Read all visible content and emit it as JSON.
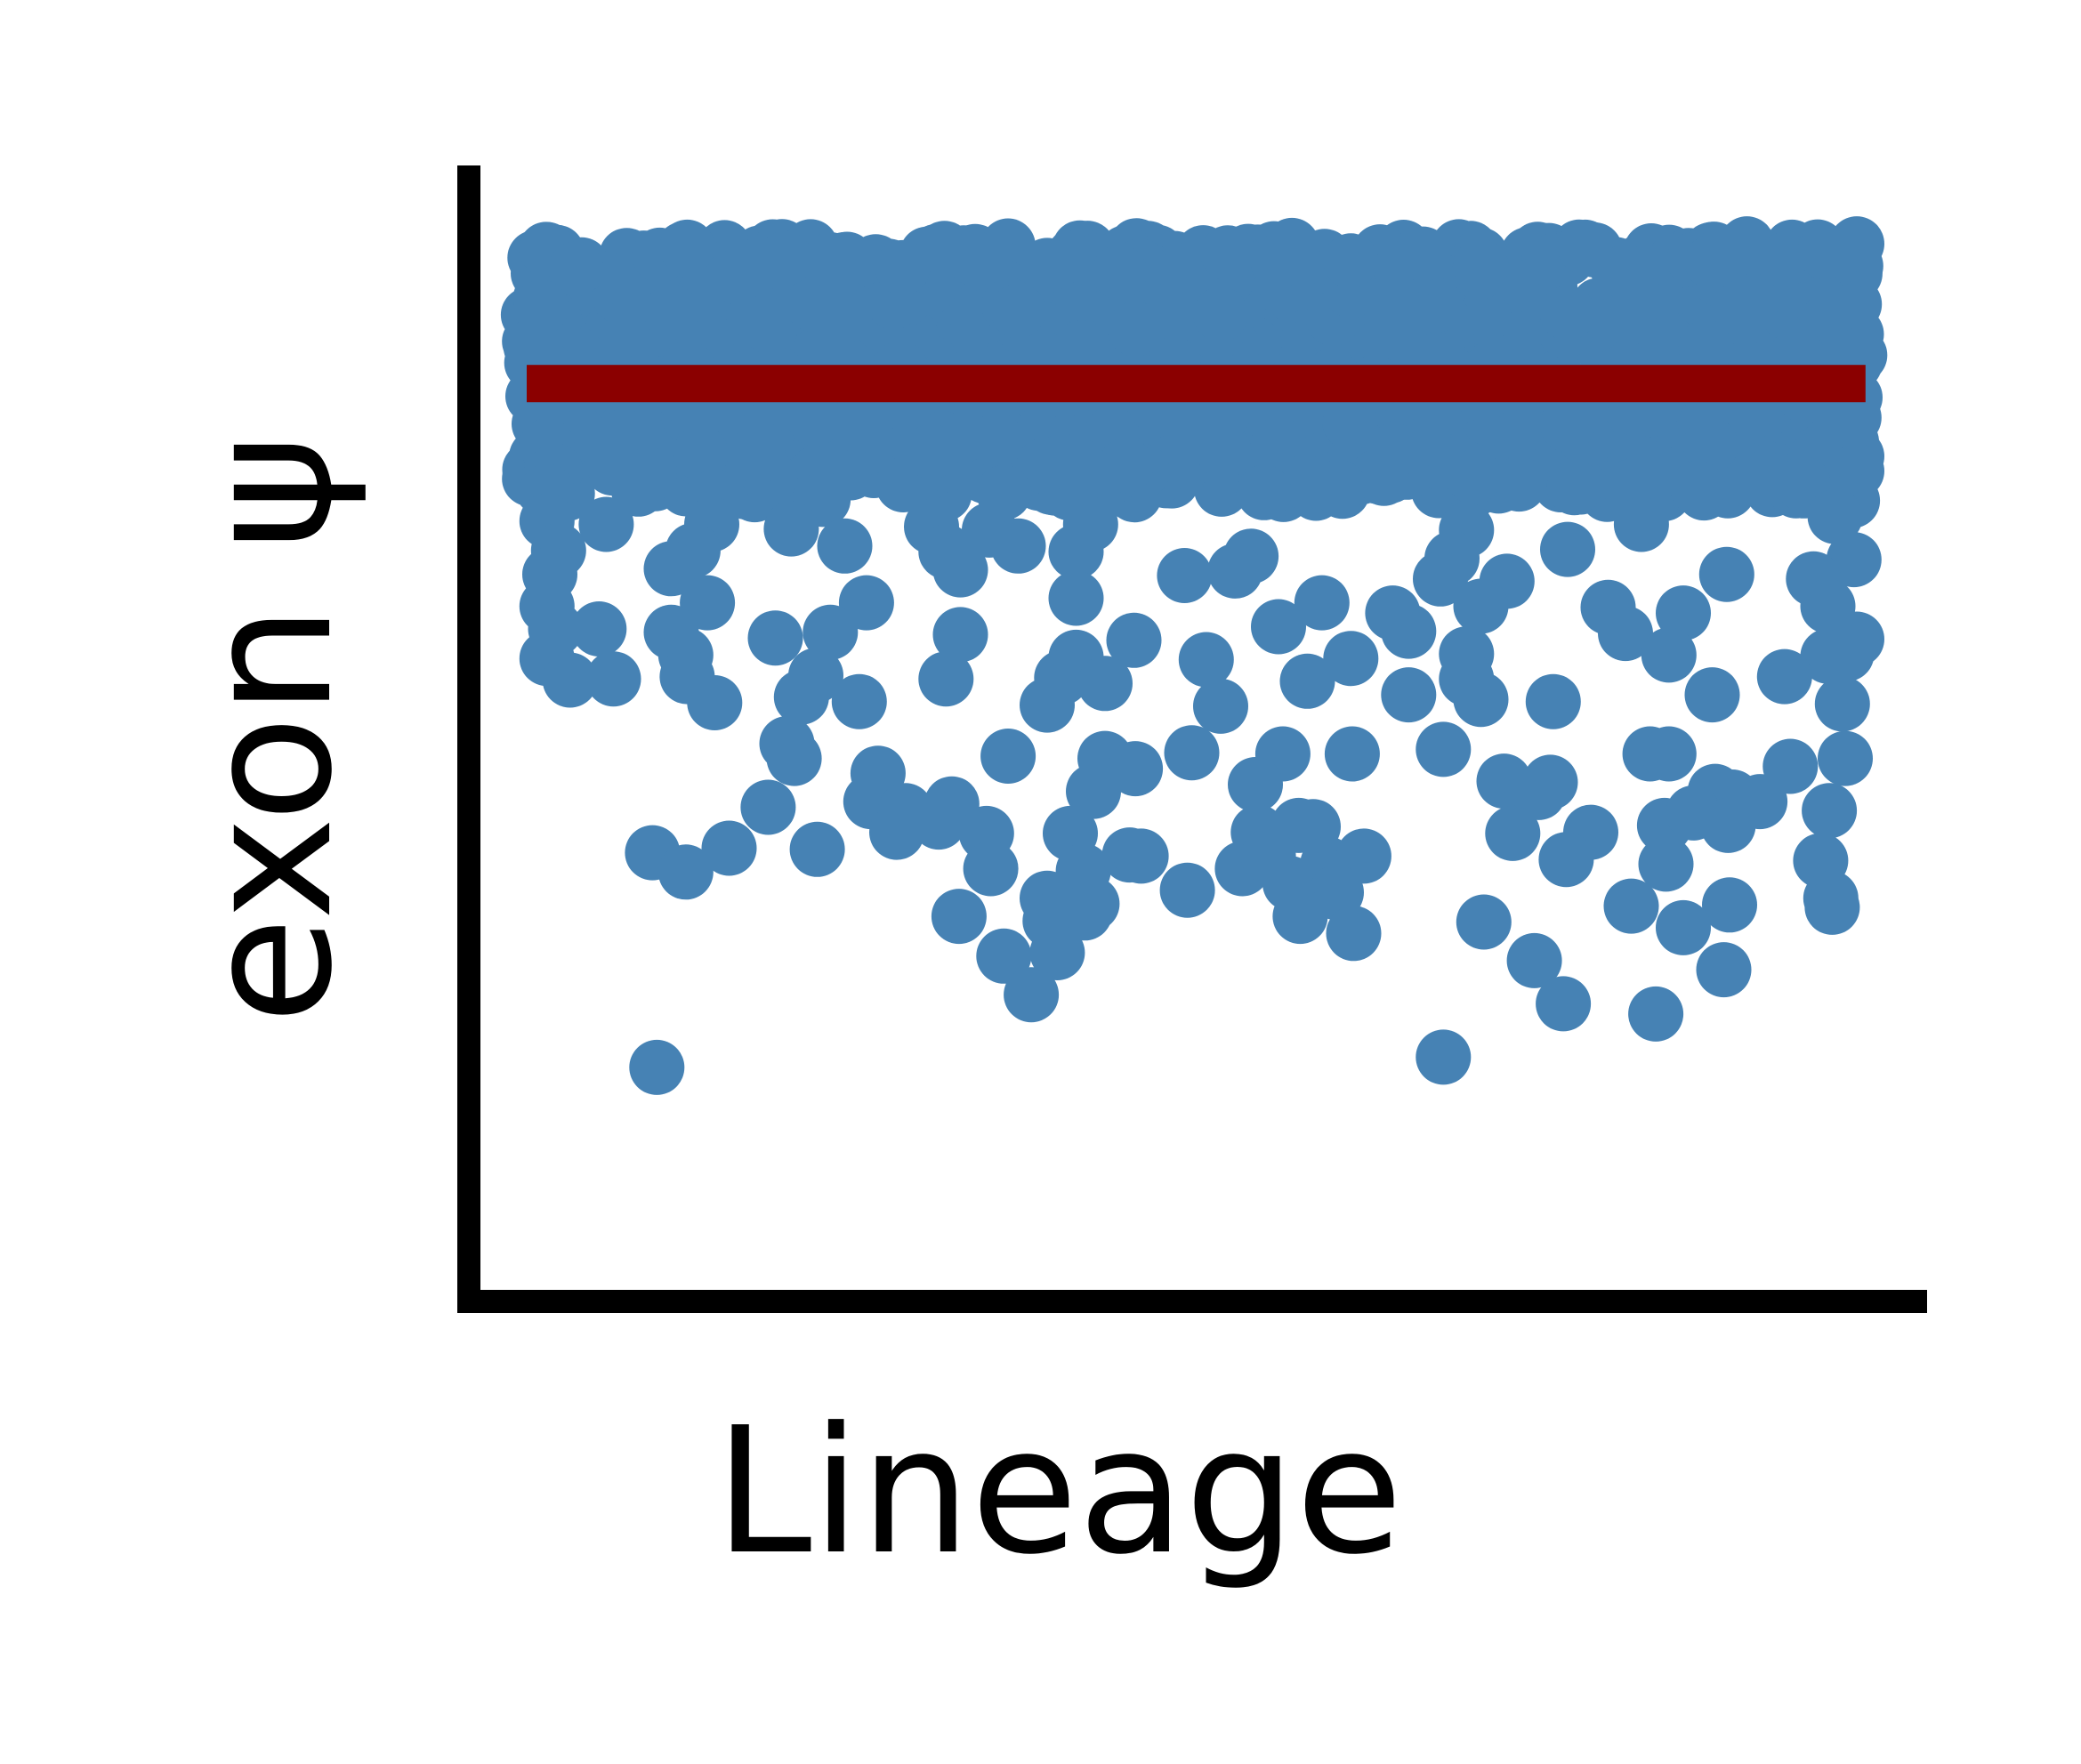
{
  "chart_data": {
    "type": "scatter",
    "title": "",
    "xlabel": "Lineage",
    "ylabel": "exon ψ",
    "xlim": [
      0,
      1
    ],
    "ylim": [
      0,
      1
    ],
    "grid": false,
    "legend": "none",
    "ticks": "none",
    "colors": {
      "points": "#4682b4",
      "reference_line": "#8b0000",
      "axes": "#000000"
    },
    "reference_line": {
      "y": 0.808,
      "x_start": 0.04,
      "x_end": 0.966
    },
    "series": [
      {
        "points_count": 1400,
        "dense_band": {
          "x_range": [
            0.04,
            0.96
          ],
          "y_range": [
            0.71,
            0.93
          ]
        },
        "values": [
          [
            0.048,
            0.905
          ],
          [
            0.054,
            0.926
          ],
          [
            0.074,
            0.909
          ],
          [
            0.108,
            0.9
          ],
          [
            0.132,
            0.921
          ],
          [
            0.151,
            0.928
          ],
          [
            0.2,
            0.912
          ],
          [
            0.25,
            0.917
          ],
          [
            0.3,
            0.91
          ],
          [
            0.329,
            0.927
          ],
          [
            0.35,
            0.918
          ],
          [
            0.4,
            0.912
          ],
          [
            0.434,
            0.916
          ],
          [
            0.45,
            0.906
          ],
          [
            0.5,
            0.909
          ],
          [
            0.525,
            0.923
          ],
          [
            0.56,
            0.916
          ],
          [
            0.61,
            0.916
          ],
          [
            0.65,
            0.911
          ],
          [
            0.66,
            0.922
          ],
          [
            0.7,
            0.911
          ],
          [
            0.75,
            0.916
          ],
          [
            0.772,
            0.928
          ],
          [
            0.8,
            0.906
          ],
          [
            0.86,
            0.915
          ],
          [
            0.884,
            0.931
          ],
          [
            0.91,
            0.917
          ],
          [
            0.938,
            0.924
          ],
          [
            0.96,
            0.931
          ],
          [
            0.05,
            0.875
          ],
          [
            0.14,
            0.871
          ],
          [
            0.26,
            0.868
          ],
          [
            0.38,
            0.872
          ],
          [
            0.52,
            0.869
          ],
          [
            0.64,
            0.873
          ],
          [
            0.76,
            0.87
          ],
          [
            0.88,
            0.874
          ],
          [
            0.955,
            0.871
          ],
          [
            0.043,
            0.84
          ],
          [
            0.962,
            0.833
          ],
          [
            0.052,
            0.775
          ],
          [
            0.27,
            0.771
          ],
          [
            0.5,
            0.776
          ],
          [
            0.76,
            0.772
          ],
          [
            0.958,
            0.778
          ],
          [
            0.054,
            0.753
          ],
          [
            0.2,
            0.744
          ],
          [
            0.32,
            0.748
          ],
          [
            0.64,
            0.749
          ],
          [
            0.96,
            0.744
          ],
          [
            0.06,
            0.731
          ],
          [
            0.96,
            0.731
          ],
          [
            0.054,
            0.713
          ],
          [
            0.17,
            0.708
          ],
          [
            0.245,
            0.706
          ],
          [
            0.37,
            0.712
          ],
          [
            0.55,
            0.712
          ],
          [
            0.85,
            0.716
          ],
          [
            0.957,
            0.705
          ],
          [
            0.054,
            0.687
          ],
          [
            0.095,
            0.684
          ],
          [
            0.168,
            0.684
          ],
          [
            0.223,
            0.68
          ],
          [
            0.32,
            0.682
          ],
          [
            0.36,
            0.679
          ],
          [
            0.43,
            0.684
          ],
          [
            0.69,
            0.679
          ],
          [
            0.811,
            0.684
          ],
          [
            0.945,
            0.691
          ],
          [
            0.062,
            0.661
          ],
          [
            0.155,
            0.661
          ],
          [
            0.26,
            0.665
          ],
          [
            0.33,
            0.66
          ],
          [
            0.38,
            0.665
          ],
          [
            0.42,
            0.66
          ],
          [
            0.541,
            0.656
          ],
          [
            0.68,
            0.654
          ],
          [
            0.76,
            0.662
          ],
          [
            0.958,
            0.653
          ],
          [
            0.056,
            0.64
          ],
          [
            0.14,
            0.645
          ],
          [
            0.34,
            0.644
          ],
          [
            0.495,
            0.639
          ],
          [
            0.53,
            0.643
          ],
          [
            0.672,
            0.636
          ],
          [
            0.718,
            0.634
          ],
          [
            0.87,
            0.64
          ],
          [
            0.93,
            0.636
          ],
          [
            0.054,
            0.612
          ],
          [
            0.165,
            0.615
          ],
          [
            0.275,
            0.615
          ],
          [
            0.42,
            0.619
          ],
          [
            0.59,
            0.615
          ],
          [
            0.639,
            0.606
          ],
          [
            0.7,
            0.612
          ],
          [
            0.788,
            0.611
          ],
          [
            0.84,
            0.606
          ],
          [
            0.94,
            0.612
          ],
          [
            0.06,
            0.592
          ],
          [
            0.09,
            0.592
          ],
          [
            0.14,
            0.589
          ],
          [
            0.25,
            0.589
          ],
          [
            0.34,
            0.587
          ],
          [
            0.46,
            0.582
          ],
          [
            0.56,
            0.594
          ],
          [
            0.65,
            0.59
          ],
          [
            0.8,
            0.588
          ],
          [
            0.96,
            0.583
          ],
          [
            0.054,
            0.566
          ],
          [
            0.15,
            0.569
          ],
          [
            0.212,
            0.584
          ],
          [
            0.42,
            0.567
          ],
          [
            0.51,
            0.565
          ],
          [
            0.61,
            0.566
          ],
          [
            0.69,
            0.57
          ],
          [
            0.83,
            0.569
          ],
          [
            0.94,
            0.568
          ],
          [
            0.953,
            0.57
          ],
          [
            0.07,
            0.547
          ],
          [
            0.1,
            0.548
          ],
          [
            0.151,
            0.55
          ],
          [
            0.24,
            0.551
          ],
          [
            0.33,
            0.548
          ],
          [
            0.41,
            0.549
          ],
          [
            0.44,
            0.544
          ],
          [
            0.58,
            0.546
          ],
          [
            0.69,
            0.548
          ],
          [
            0.91,
            0.55
          ],
          [
            0.17,
            0.527
          ],
          [
            0.23,
            0.532
          ],
          [
            0.27,
            0.528
          ],
          [
            0.4,
            0.525
          ],
          [
            0.52,
            0.524
          ],
          [
            0.65,
            0.534
          ],
          [
            0.7,
            0.53
          ],
          [
            0.75,
            0.528
          ],
          [
            0.86,
            0.534
          ],
          [
            0.95,
            0.526
          ],
          [
            0.22,
            0.491
          ],
          [
            0.225,
            0.478
          ],
          [
            0.283,
            0.465
          ],
          [
            0.373,
            0.48
          ],
          [
            0.44,
            0.478
          ],
          [
            0.461,
            0.469
          ],
          [
            0.5,
            0.483
          ],
          [
            0.563,
            0.482
          ],
          [
            0.611,
            0.482
          ],
          [
            0.674,
            0.486
          ],
          [
            0.748,
            0.457
          ],
          [
            0.817,
            0.482
          ],
          [
            0.83,
            0.482
          ],
          [
            0.914,
            0.471
          ],
          [
            0.952,
            0.478
          ],
          [
            0.278,
            0.44
          ],
          [
            0.302,
            0.432
          ],
          [
            0.334,
            0.438
          ],
          [
            0.432,
            0.449
          ],
          [
            0.544,
            0.455
          ],
          [
            0.716,
            0.458
          ],
          [
            0.74,
            0.448
          ],
          [
            0.862,
            0.449
          ],
          [
            0.874,
            0.444
          ],
          [
            0.893,
            0.44
          ],
          [
            0.941,
            0.432
          ],
          [
            0.207,
            0.435
          ],
          [
            0.296,
            0.413
          ],
          [
            0.325,
            0.422
          ],
          [
            0.358,
            0.412
          ],
          [
            0.416,
            0.412
          ],
          [
            0.546,
            0.413
          ],
          [
            0.574,
            0.419
          ],
          [
            0.584,
            0.418
          ],
          [
            0.722,
            0.412
          ],
          [
            0.776,
            0.413
          ],
          [
            0.827,
            0.419
          ],
          [
            0.847,
            0.43
          ],
          [
            0.871,
            0.419
          ],
          [
            0.127,
            0.395
          ],
          [
            0.15,
            0.378
          ],
          [
            0.18,
            0.399
          ],
          [
            0.241,
            0.398
          ],
          [
            0.361,
            0.381
          ],
          [
            0.425,
            0.379
          ],
          [
            0.457,
            0.393
          ],
          [
            0.465,
            0.392
          ],
          [
            0.535,
            0.381
          ],
          [
            0.553,
            0.392
          ],
          [
            0.594,
            0.385
          ],
          [
            0.619,
            0.392
          ],
          [
            0.759,
            0.389
          ],
          [
            0.828,
            0.385
          ],
          [
            0.935,
            0.388
          ],
          [
            0.4,
            0.355
          ],
          [
            0.41,
            0.352
          ],
          [
            0.431,
            0.35
          ],
          [
            0.497,
            0.362
          ],
          [
            0.568,
            0.368
          ],
          [
            0.6,
            0.36
          ],
          [
            0.804,
            0.348
          ],
          [
            0.872,
            0.349
          ],
          [
            0.942,
            0.355
          ],
          [
            0.339,
            0.339
          ],
          [
            0.402,
            0.335
          ],
          [
            0.426,
            0.342
          ],
          [
            0.575,
            0.339
          ],
          [
            0.612,
            0.324
          ],
          [
            0.702,
            0.334
          ],
          [
            0.84,
            0.329
          ],
          [
            0.943,
            0.347
          ],
          [
            0.37,
            0.304
          ],
          [
            0.407,
            0.307
          ],
          [
            0.737,
            0.3
          ],
          [
            0.868,
            0.292
          ],
          [
            0.389,
            0.27
          ],
          [
            0.757,
            0.262
          ],
          [
            0.821,
            0.253
          ],
          [
            0.674,
            0.215
          ],
          [
            0.13,
            0.206
          ]
        ]
      }
    ]
  }
}
